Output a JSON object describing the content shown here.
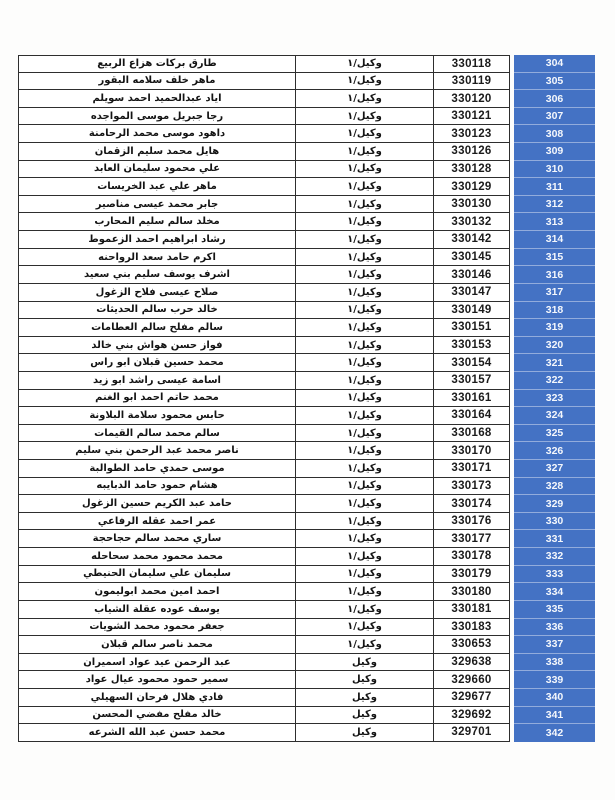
{
  "document": {
    "accent_color": "#4472c4",
    "rank_with_grade": "وكيل/١",
    "rank_plain": "وكيل"
  },
  "table": {
    "rows": [
      {
        "serial": "304",
        "rank": "وكيل/١",
        "id": "330118",
        "name": "طارق بركات هزاع الربيع"
      },
      {
        "serial": "305",
        "rank": "وكيل/١",
        "id": "330119",
        "name": "ماهر خلف سلامه البقور"
      },
      {
        "serial": "306",
        "rank": "وكيل/١",
        "id": "330120",
        "name": "اياد عبدالحميد احمد سويلم"
      },
      {
        "serial": "307",
        "rank": "وكيل/١",
        "id": "330121",
        "name": "رجا جبريل موسى المواجده"
      },
      {
        "serial": "308",
        "rank": "وكيل/١",
        "id": "330123",
        "name": "داهود موسى محمد الرحامنة"
      },
      {
        "serial": "309",
        "rank": "وكيل/١",
        "id": "330126",
        "name": "هايل محمد سليم الزقمان"
      },
      {
        "serial": "310",
        "rank": "وكيل/١",
        "id": "330128",
        "name": "علي محمود سليمان العابد"
      },
      {
        "serial": "311",
        "rank": "وكيل/١",
        "id": "330129",
        "name": "ماهر علي عبد الخريسات"
      },
      {
        "serial": "312",
        "rank": "وكيل/١",
        "id": "330130",
        "name": "جابر محمد عيسى مناصير"
      },
      {
        "serial": "313",
        "rank": "وكيل/١",
        "id": "330132",
        "name": "مخلد سالم سليم المحارب"
      },
      {
        "serial": "314",
        "rank": "وكيل/١",
        "id": "330142",
        "name": "رشاد ابراهيم احمد الزعموط"
      },
      {
        "serial": "315",
        "rank": "وكيل/١",
        "id": "330145",
        "name": "اكرم حامد سعد الرواحنه"
      },
      {
        "serial": "316",
        "rank": "وكيل/١",
        "id": "330146",
        "name": "اشرف يوسف سليم بني سعيد"
      },
      {
        "serial": "317",
        "rank": "وكيل/١",
        "id": "330147",
        "name": "صلاح عيسى فلاح الزغول"
      },
      {
        "serial": "318",
        "rank": "وكيل/١",
        "id": "330149",
        "name": "خالد حرب سالم الحديثات"
      },
      {
        "serial": "319",
        "rank": "وكيل/١",
        "id": "330151",
        "name": "سالم مفلح سالم العطامات"
      },
      {
        "serial": "320",
        "rank": "وكيل/١",
        "id": "330153",
        "name": "فواز حسن هواش بني خالد"
      },
      {
        "serial": "321",
        "rank": "وكيل/١",
        "id": "330154",
        "name": "محمد حسين قبلان ابو راس"
      },
      {
        "serial": "322",
        "rank": "وكيل/١",
        "id": "330157",
        "name": "اسامة عيسى راشد ابو زيد"
      },
      {
        "serial": "323",
        "rank": "وكيل/١",
        "id": "330161",
        "name": "محمد حاتم احمد ابو الغنم"
      },
      {
        "serial": "324",
        "rank": "وكيل/١",
        "id": "330164",
        "name": "حابس محمود سلامة البلاونة"
      },
      {
        "serial": "325",
        "rank": "وكيل/١",
        "id": "330168",
        "name": "سالم محمد سالم القيمات"
      },
      {
        "serial": "326",
        "rank": "وكيل/١",
        "id": "330170",
        "name": "ناصر محمد عبد الرحمن بني سليم"
      },
      {
        "serial": "327",
        "rank": "وكيل/١",
        "id": "330171",
        "name": "موسى حمدي حامد الطوالبة"
      },
      {
        "serial": "328",
        "rank": "وكيل/١",
        "id": "330173",
        "name": "هشام حمود حامد الدبايبه"
      },
      {
        "serial": "329",
        "rank": "وكيل/١",
        "id": "330174",
        "name": "حامد عبد الكريم حسين الزغول"
      },
      {
        "serial": "330",
        "rank": "وكيل/١",
        "id": "330176",
        "name": "عمر احمد عقله الرفاعي"
      },
      {
        "serial": "331",
        "rank": "وكيل/١",
        "id": "330177",
        "name": "ساري محمد سالم حجاحجة"
      },
      {
        "serial": "332",
        "rank": "وكيل/١",
        "id": "330178",
        "name": "محمد محمود محمد سحاحله"
      },
      {
        "serial": "333",
        "rank": "وكيل/١",
        "id": "330179",
        "name": "سليمان علي سليمان الحنيطي"
      },
      {
        "serial": "334",
        "rank": "وكيل/١",
        "id": "330180",
        "name": "احمد امين محمد ابوليمون"
      },
      {
        "serial": "335",
        "rank": "وكيل/١",
        "id": "330181",
        "name": "يوسف عوده عقلة الشياب"
      },
      {
        "serial": "336",
        "rank": "وكيل/١",
        "id": "330183",
        "name": "جعفر محمود محمد الشويات"
      },
      {
        "serial": "337",
        "rank": "وكيل/١",
        "id": "330653",
        "name": "محمد ناصر سالم قبلان"
      },
      {
        "serial": "338",
        "rank": "وكيل",
        "id": "329638",
        "name": "عبد الرحمن عيد عواد اسميران"
      },
      {
        "serial": "339",
        "rank": "وكيل",
        "id": "329660",
        "name": "سمير حمود محمود عيال عواد"
      },
      {
        "serial": "340",
        "rank": "وكيل",
        "id": "329677",
        "name": "فادي هلال فرحان السهيلي"
      },
      {
        "serial": "341",
        "rank": "وكيل",
        "id": "329692",
        "name": "خالد مفلح مفضي المحسن"
      },
      {
        "serial": "342",
        "rank": "وكيل",
        "id": "329701",
        "name": "محمد حسن عبد الله الشرعه"
      }
    ]
  }
}
